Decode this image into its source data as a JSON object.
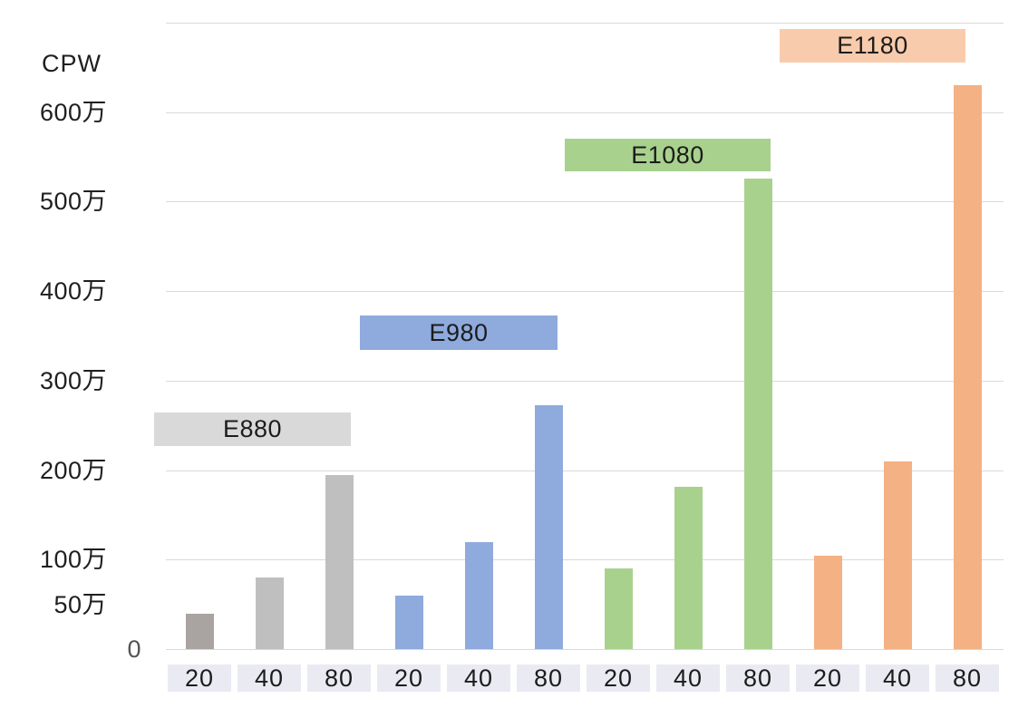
{
  "page": {
    "background": "#ffffff"
  },
  "chart_data": {
    "type": "bar",
    "title": "",
    "ylabel": "CPW",
    "xlabel": "",
    "y_unit_suffix": "万",
    "ylim": [
      0,
      7000000
    ],
    "gridline_interval": 1000000,
    "grid": true,
    "legend_position": "stepped-category-labels-above-each-group",
    "y_ticks": [
      {
        "label": "600万",
        "value": 6000000
      },
      {
        "label": "500万",
        "value": 5000000
      },
      {
        "label": "400万",
        "value": 4000000
      },
      {
        "label": "300万",
        "value": 3000000
      },
      {
        "label": "200万",
        "value": 2000000
      },
      {
        "label": "100万",
        "value": 1000000
      },
      {
        "label": "50万",
        "value": 500000
      },
      {
        "label": "0",
        "value": 0
      }
    ],
    "categories": [
      "20",
      "40",
      "80"
    ],
    "series": [
      {
        "name": "E880",
        "values": [
          400000,
          800000,
          1950000
        ],
        "color": "#bfbfbf",
        "bar_colors": [
          "#a9a4a2",
          "#bfbfbf",
          "#bfbfbf"
        ],
        "label_bg": "#d9d9d9"
      },
      {
        "name": "E980",
        "values": [
          600000,
          1200000,
          2730000
        ],
        "color": "#8faadc",
        "label_bg": "#8faadc"
      },
      {
        "name": "E1080",
        "values": [
          900000,
          1810000,
          5260000
        ],
        "color": "#a9d18e",
        "label_bg": "#a9d18e"
      },
      {
        "name": "E1180",
        "values": [
          1040000,
          2100000,
          6300000
        ],
        "color": "#f4b183",
        "label_bg": "#f8cbad"
      }
    ]
  },
  "style": {
    "gridline_color": "#d9d9d9",
    "axis_text_color": "#1f1f1f",
    "x_tick_band_bg": "#eaeaf3",
    "background": "#ffffff"
  }
}
